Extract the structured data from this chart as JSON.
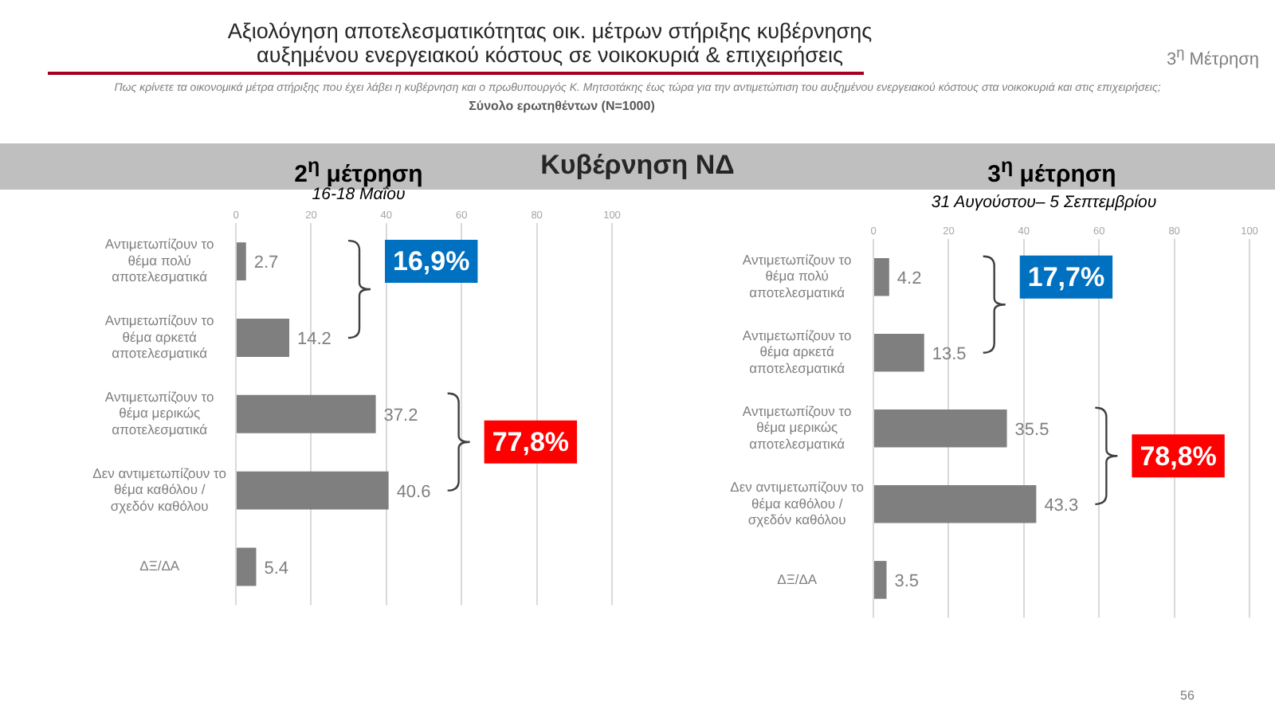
{
  "chart_data": [
    {
      "type": "other",
      "title": "Αξιολόγηση αποτελεσματικότητας οικ. μέτρων στήριξης κυβέρνησης αυξημένου ενεργειακού κόστους σε νοικοκυριά & επιχειρήσεις",
      "subtitle": "Πως κρίνετε τα οικονομικά μέτρα στήριξης που έχει λάβει η κυβέρνηση και ο πρωθυπουργός Κ. Μητσοτάκης έως τώρα για την αντιμετώπιση του αυξημένου ενεργειακού κόστους στα νοικοκυριά και στις επιχειρήσεις;",
      "annotations": [
        "Σύνολο ερωτηθέντων (N=1000)",
        "3$^{η}$ Μέτρηση",
        "Κυβέρνηση ΝΔ",
        "56"
      ]
    },
    {
      "type": "bar",
      "orientation": "horizontal",
      "title": "2$^{η}$ μέτρηση",
      "subtitle": "16-18 Μαΐου",
      "categories": [
        "Αντιμετωπίζουν το θέμα πολύ αποτελεσματικά",
        "Αντιμετωπίζουν το θέμα αρκετά αποτελεσματικά",
        "Αντιμετωπίζουν το θέμα μερικώς αποτελεσματικά",
        "Δεν αντιμετωπίζουν το θέμα καθόλου / σχεδόν καθόλου",
        "ΔΞ/ΔΑ"
      ],
      "values": [
        2.7,
        14.2,
        37.2,
        40.6,
        5.4
      ],
      "color": "#7f7f7f",
      "xlim": [
        0,
        100
      ],
      "xticks": [
        0,
        20,
        40,
        60,
        80,
        100
      ],
      "grid": "x",
      "data_labels": true,
      "annotations": [
        "16,9%",
        "77,8%"
      ]
    },
    {
      "type": "bar",
      "orientation": "horizontal",
      "title": "3$^{η}$ μέτρηση",
      "subtitle": "31 Αυγούστου– 5 Σεπτεμβρίου",
      "categories": [
        "Αντιμετωπίζουν το θέμα πολύ αποτελεσματικά",
        "Αντιμετωπίζουν το θέμα αρκετά αποτελεσματικά",
        "Αντιμετωπίζουν το θέμα μερικώς αποτελεσματικά",
        "Δεν αντιμετωπίζουν το θέμα καθόλου / σχεδόν καθόλου",
        "ΔΞ/ΔΑ"
      ],
      "values": [
        4.2,
        13.5,
        35.5,
        43.3,
        3.5
      ],
      "color": "#7f7f7f",
      "xlim": [
        0,
        100
      ],
      "xticks": [
        0,
        20,
        40,
        60,
        80,
        100
      ],
      "grid": "x",
      "data_labels": true,
      "annotations": [
        "17,7%",
        "78,8%"
      ]
    }
  ]
}
